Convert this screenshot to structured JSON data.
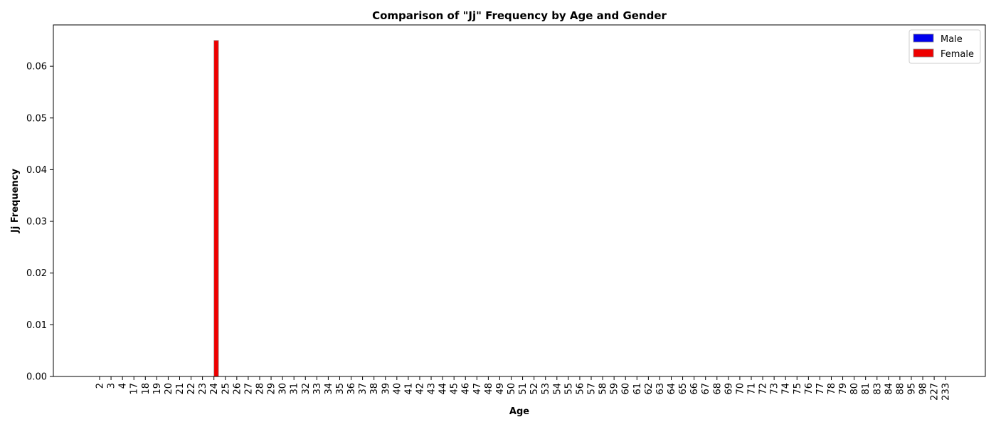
{
  "chart_data": {
    "type": "bar",
    "title": "Comparison of \"Jj\" Frequency by Age and Gender",
    "xlabel": "Age",
    "ylabel": "Jj Frequency",
    "ylim": [
      0,
      0.068
    ],
    "yticks": [
      "0.00",
      "0.01",
      "0.02",
      "0.03",
      "0.04",
      "0.05",
      "0.06"
    ],
    "grid": false,
    "legend_position": "top-right",
    "categories": [
      "2",
      "3",
      "4",
      "17",
      "18",
      "19",
      "20",
      "21",
      "22",
      "23",
      "24",
      "25",
      "26",
      "27",
      "28",
      "29",
      "30",
      "31",
      "32",
      "33",
      "34",
      "35",
      "36",
      "37",
      "38",
      "39",
      "40",
      "41",
      "42",
      "43",
      "44",
      "45",
      "46",
      "47",
      "48",
      "49",
      "50",
      "51",
      "52",
      "53",
      "54",
      "55",
      "56",
      "57",
      "58",
      "59",
      "60",
      "61",
      "62",
      "63",
      "64",
      "65",
      "66",
      "67",
      "68",
      "69",
      "70",
      "71",
      "72",
      "73",
      "74",
      "75",
      "76",
      "77",
      "78",
      "79",
      "80",
      "81",
      "83",
      "84",
      "88",
      "95",
      "98",
      "227",
      "233"
    ],
    "series": [
      {
        "name": "Male",
        "color": "#0000ee",
        "values": [
          0,
          0,
          0,
          0,
          0,
          0,
          0,
          0,
          0,
          0,
          0,
          0,
          0,
          0,
          0,
          0,
          0,
          0,
          0,
          0,
          0,
          0,
          0,
          0,
          0,
          0,
          0,
          0,
          0,
          0,
          0,
          0,
          0,
          0,
          0,
          0,
          0,
          0,
          0,
          0,
          0,
          0,
          0,
          0,
          0,
          0,
          0,
          0,
          0,
          0,
          0,
          0,
          0,
          0,
          0,
          0,
          0,
          0,
          0,
          0,
          0,
          0,
          0,
          0,
          0,
          0,
          0,
          0,
          0,
          0,
          0,
          0,
          0,
          0,
          0
        ]
      },
      {
        "name": "Female",
        "color": "#ee0000",
        "values": [
          0,
          0,
          0,
          0,
          0,
          0,
          0,
          0,
          0,
          0,
          0.065,
          0,
          0,
          0,
          0,
          0,
          0,
          0,
          0,
          0,
          0,
          0,
          0,
          0,
          0,
          0,
          0,
          0,
          0,
          0,
          0,
          0,
          0,
          0,
          0,
          0,
          0,
          0,
          0,
          0,
          0,
          0,
          0,
          0,
          0,
          0,
          0,
          0,
          0,
          0,
          0,
          0,
          0,
          0,
          0,
          0,
          0,
          0,
          0,
          0,
          0,
          0,
          0,
          0,
          0,
          0,
          0,
          0,
          0,
          0,
          0,
          0,
          0,
          0,
          0
        ]
      }
    ]
  }
}
